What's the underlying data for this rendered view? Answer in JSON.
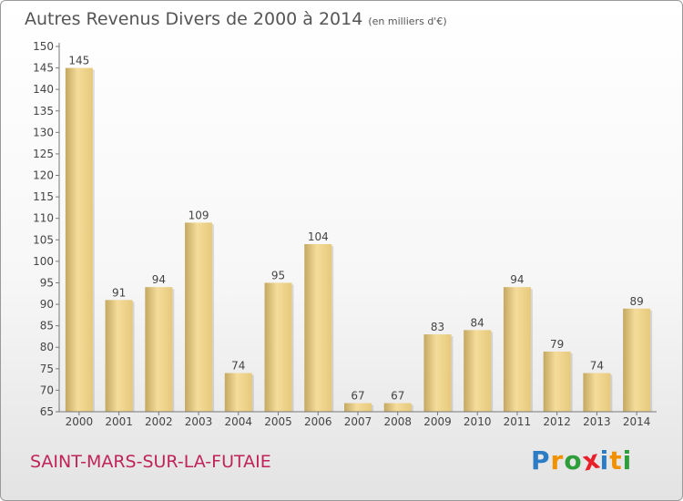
{
  "title": "Autres Revenus Divers de 2000 à 2014",
  "unit": "(en milliers d'€)",
  "commune": "SAINT-MARS-SUR-LA-FUTAIE",
  "logo": {
    "letters": [
      "P",
      "r",
      "o",
      "x",
      "i",
      "t",
      "i"
    ],
    "colors": [
      "#2b7cc4",
      "#f29100",
      "#2e9e3a",
      "#e8202a",
      "#2b7cc4",
      "#f29100",
      "#2e9e3a"
    ]
  },
  "colors": {
    "bar_light": "#f5dc9a",
    "bar_dark": "#c4a861",
    "commune": "#c0235a",
    "text": "#444444"
  },
  "chart_data": {
    "type": "bar",
    "categories": [
      "2000",
      "2001",
      "2002",
      "2003",
      "2004",
      "2005",
      "2006",
      "2007",
      "2008",
      "2009",
      "2010",
      "2011",
      "2012",
      "2013",
      "2014"
    ],
    "values": [
      145,
      91,
      94,
      109,
      74,
      95,
      104,
      67,
      67,
      83,
      84,
      94,
      79,
      74,
      89
    ],
    "ylim": [
      65,
      150
    ],
    "yticks": [
      65,
      70,
      75,
      80,
      85,
      90,
      95,
      100,
      105,
      110,
      115,
      120,
      125,
      130,
      135,
      140,
      145,
      150
    ],
    "grid": false,
    "data_labels": true
  }
}
